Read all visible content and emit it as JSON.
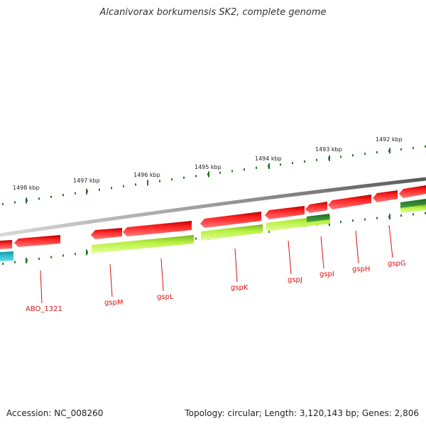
{
  "title": "Alcanivorax borkumensis SK2, complete genome",
  "footer": {
    "accession": "Accession: NC_008260",
    "summary": "Topology: circular; Length: 3,120,143 bp; Genes: 2,806"
  },
  "ruler_ticks": [
    "1498 kbp",
    "1497 kbp",
    "1496 kbp",
    "1495 kbp",
    "1494 kbp",
    "1493 kbp",
    "1492 kbp"
  ],
  "gene_labels": [
    "ABO_1321",
    "gspM",
    "gspL",
    "gspK",
    "gspJ",
    "gspI",
    "gspH",
    "gspG"
  ],
  "colors": {
    "backbone": "#808080",
    "forward_gene": "#ee1111",
    "reverse_gene": "#aaee33",
    "rna_gene": "#22bbcc",
    "tick": "#227722",
    "label": "#dd1111"
  }
}
